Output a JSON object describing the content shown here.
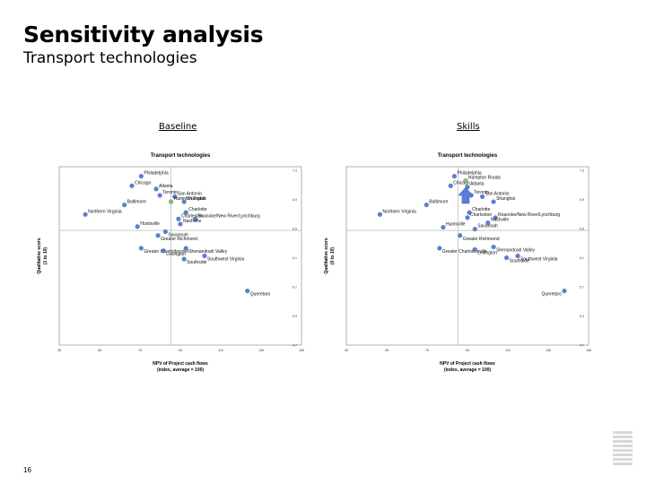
{
  "slide": {
    "title": "Sensitivity analysis",
    "subtitle": "Transport technologies",
    "page_number": "16"
  },
  "chart_data": [
    {
      "type": "scatter",
      "panel_label": "Baseline",
      "title": "Transport technologies",
      "xlabel": "NPV of Project cash flows",
      "xlabel_sub": "(index, average = 100)",
      "ylabel": "Qualitative score",
      "ylabel_sub": "(1 to 10)",
      "xlim": [
        35,
        165
      ],
      "ylim": [
        4.7,
        7.5
      ],
      "xticks": [
        "35",
        "55",
        "75",
        "95",
        "115",
        "135",
        "165"
      ],
      "yticks": [
        "7.3",
        "6.9",
        "6.5",
        "6.1",
        "5.7",
        "5.3",
        "4.7"
      ],
      "ref_x": 95,
      "ref_y": 6.5,
      "points": [
        {
          "label": "Philadelphia",
          "x": 79,
          "y": 7.35
        },
        {
          "label": "Chicago",
          "x": 74,
          "y": 7.2
        },
        {
          "label": "Atlanta",
          "x": 87,
          "y": 7.15
        },
        {
          "label": "Toronto",
          "x": 89,
          "y": 7.05
        },
        {
          "label": "San Antonio",
          "x": 97,
          "y": 7.03
        },
        {
          "label": "Hampton Roads",
          "x": 95,
          "y": 6.95,
          "highlight": true
        },
        {
          "label": "Baltimore",
          "x": 70,
          "y": 6.9
        },
        {
          "label": "Shanghai",
          "x": 102,
          "y": 6.95
        },
        {
          "label": "Northern Virginia",
          "x": 49,
          "y": 6.75
        },
        {
          "label": "Charlotte",
          "x": 103,
          "y": 6.78
        },
        {
          "label": "Charleston",
          "x": 99,
          "y": 6.68
        },
        {
          "label": "Roanoke/New River/Lynchburg",
          "x": 108,
          "y": 6.68
        },
        {
          "label": "Huntsville",
          "x": 77,
          "y": 6.56
        },
        {
          "label": "Nashville",
          "x": 100,
          "y": 6.6
        },
        {
          "label": "Savannah",
          "x": 92,
          "y": 6.48
        },
        {
          "label": "Greater Richmond",
          "x": 88,
          "y": 6.42
        },
        {
          "label": "Greater Charlottesville",
          "x": 79,
          "y": 6.22
        },
        {
          "label": "Lexington",
          "x": 91,
          "y": 6.18
        },
        {
          "label": "Shenandoah Valley",
          "x": 103,
          "y": 6.22
        },
        {
          "label": "Southwest Virginia",
          "x": 113,
          "y": 6.1
        },
        {
          "label": "Southside",
          "x": 102,
          "y": 6.05
        },
        {
          "label": "Queretaro",
          "x": 136,
          "y": 5.55
        }
      ]
    },
    {
      "type": "scatter",
      "panel_label": "Skills",
      "title": "Transport technologies",
      "xlabel": "NPV of Project cash flows",
      "xlabel_sub": "(index, average = 100)",
      "ylabel": "Qualitative score",
      "ylabel_sub": "(0 to 10)",
      "xlim": [
        35,
        165
      ],
      "ylim": [
        4.7,
        7.5
      ],
      "xticks": [
        "35",
        "55",
        "75",
        "95",
        "115",
        "135",
        "165"
      ],
      "yticks": [
        "7.3",
        "6.9",
        "6.5",
        "6.1",
        "5.7",
        "5.3",
        "4.7"
      ],
      "ref_x": 95,
      "ref_y": 6.5,
      "points": [
        {
          "label": "Philadelphia",
          "x": 93,
          "y": 7.35
        },
        {
          "label": "Chicago",
          "x": 91,
          "y": 7.2
        },
        {
          "label": "Hampton Roads",
          "x": 99,
          "y": 7.28,
          "highlight": true
        },
        {
          "label": "Atlanta",
          "x": 100,
          "y": 7.18
        },
        {
          "label": "Toronto",
          "x": 102,
          "y": 7.05
        },
        {
          "label": "San Antonio",
          "x": 108,
          "y": 7.03
        },
        {
          "label": "Shanghai",
          "x": 114,
          "y": 6.95
        },
        {
          "label": "Baltimore",
          "x": 78,
          "y": 6.9
        },
        {
          "label": "Northern Virginia",
          "x": 53,
          "y": 6.75
        },
        {
          "label": "Charlotte",
          "x": 101,
          "y": 6.78
        },
        {
          "label": "Charleston",
          "x": 100,
          "y": 6.7
        },
        {
          "label": "Roanoke/New River/Lynchburg",
          "x": 115,
          "y": 6.7
        },
        {
          "label": "Nashville",
          "x": 111,
          "y": 6.62
        },
        {
          "label": "Huntsville",
          "x": 87,
          "y": 6.55
        },
        {
          "label": "Savannah",
          "x": 104,
          "y": 6.52
        },
        {
          "label": "Greater Richmond",
          "x": 96,
          "y": 6.42
        },
        {
          "label": "Greater Charlottesville",
          "x": 85,
          "y": 6.22
        },
        {
          "label": "Lexington",
          "x": 104,
          "y": 6.2
        },
        {
          "label": "Shenandoah Valley",
          "x": 114,
          "y": 6.24
        },
        {
          "label": "Southwest Virginia",
          "x": 127,
          "y": 6.1
        },
        {
          "label": "Southside",
          "x": 121,
          "y": 6.07
        },
        {
          "label": "Queretaro",
          "x": 152,
          "y": 5.55
        }
      ]
    }
  ]
}
